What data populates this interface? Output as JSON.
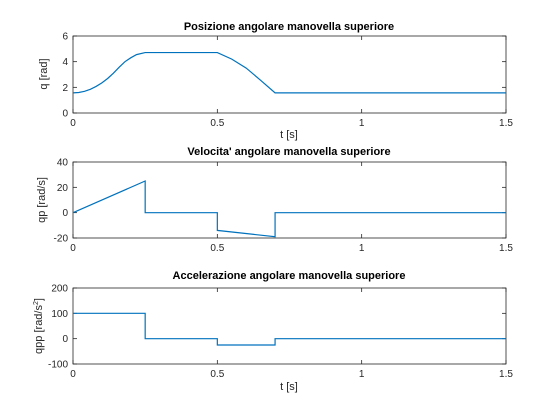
{
  "chart_data": [
    {
      "type": "line",
      "title": "Posizione angolare manovella superiore",
      "xlabel": "t [s]",
      "ylabel": "q [rad]",
      "xlim": [
        0,
        1.5
      ],
      "ylim": [
        0,
        6
      ],
      "xticks": [
        0,
        0.5,
        1,
        1.5
      ],
      "xtick_labels": [
        "0",
        "0.5",
        "1",
        "1.5"
      ],
      "yticks": [
        0,
        2,
        4,
        6
      ],
      "ytick_labels": [
        "0",
        "2",
        "4",
        "6"
      ],
      "grid": false,
      "color": "#0072bd",
      "series": [
        {
          "x": [
            0,
            0.02,
            0.04,
            0.06,
            0.08,
            0.1,
            0.12,
            0.14,
            0.16,
            0.18,
            0.2,
            0.22,
            0.25,
            0.5,
            0.55,
            0.6,
            0.65,
            0.7,
            1.5
          ],
          "y": [
            1.57,
            1.6,
            1.69,
            1.85,
            2.07,
            2.35,
            2.69,
            3.1,
            3.57,
            4.0,
            4.3,
            4.55,
            4.71,
            4.71,
            4.2,
            3.5,
            2.55,
            1.57,
            1.57
          ]
        }
      ]
    },
    {
      "type": "line",
      "title": "Velocita' angolare manovella superiore",
      "xlabel": "",
      "ylabel": "qp [rad/s]",
      "xlim": [
        0,
        1.5
      ],
      "ylim": [
        -20,
        40
      ],
      "xticks": [
        0,
        0.5,
        1,
        1.5
      ],
      "xtick_labels": [
        "0",
        "0.5",
        "1",
        "1.5"
      ],
      "yticks": [
        -20,
        0,
        20,
        40
      ],
      "ytick_labels": [
        "-20",
        "0",
        "20",
        "40"
      ],
      "grid": false,
      "color": "#0072bd",
      "series": [
        {
          "x": [
            0,
            0.25,
            0.25,
            0.5,
            0.5,
            0.7,
            0.7,
            1.5
          ],
          "y": [
            0,
            25,
            0,
            0,
            -14,
            -19,
            0,
            0
          ]
        }
      ]
    },
    {
      "type": "line",
      "title": "Accelerazione angolare manovella superiore",
      "xlabel": "t [s]",
      "ylabel_main": "qpp [rad/s",
      "ylabel_sup": "2",
      "ylabel_end": "]",
      "xlim": [
        0,
        1.5
      ],
      "ylim": [
        -100,
        200
      ],
      "xticks": [
        0,
        0.5,
        1,
        1.5
      ],
      "xtick_labels": [
        "0",
        "0.5",
        "1",
        "1.5"
      ],
      "yticks": [
        -100,
        0,
        100,
        200
      ],
      "ytick_labels": [
        "-100",
        "0",
        "100",
        "200"
      ],
      "grid": false,
      "color": "#0072bd",
      "series": [
        {
          "x": [
            0,
            0.25,
            0.25,
            0.5,
            0.5,
            0.7,
            0.7,
            1.5
          ],
          "y": [
            100,
            100,
            0,
            0,
            -25,
            -25,
            0,
            0
          ]
        }
      ]
    }
  ]
}
